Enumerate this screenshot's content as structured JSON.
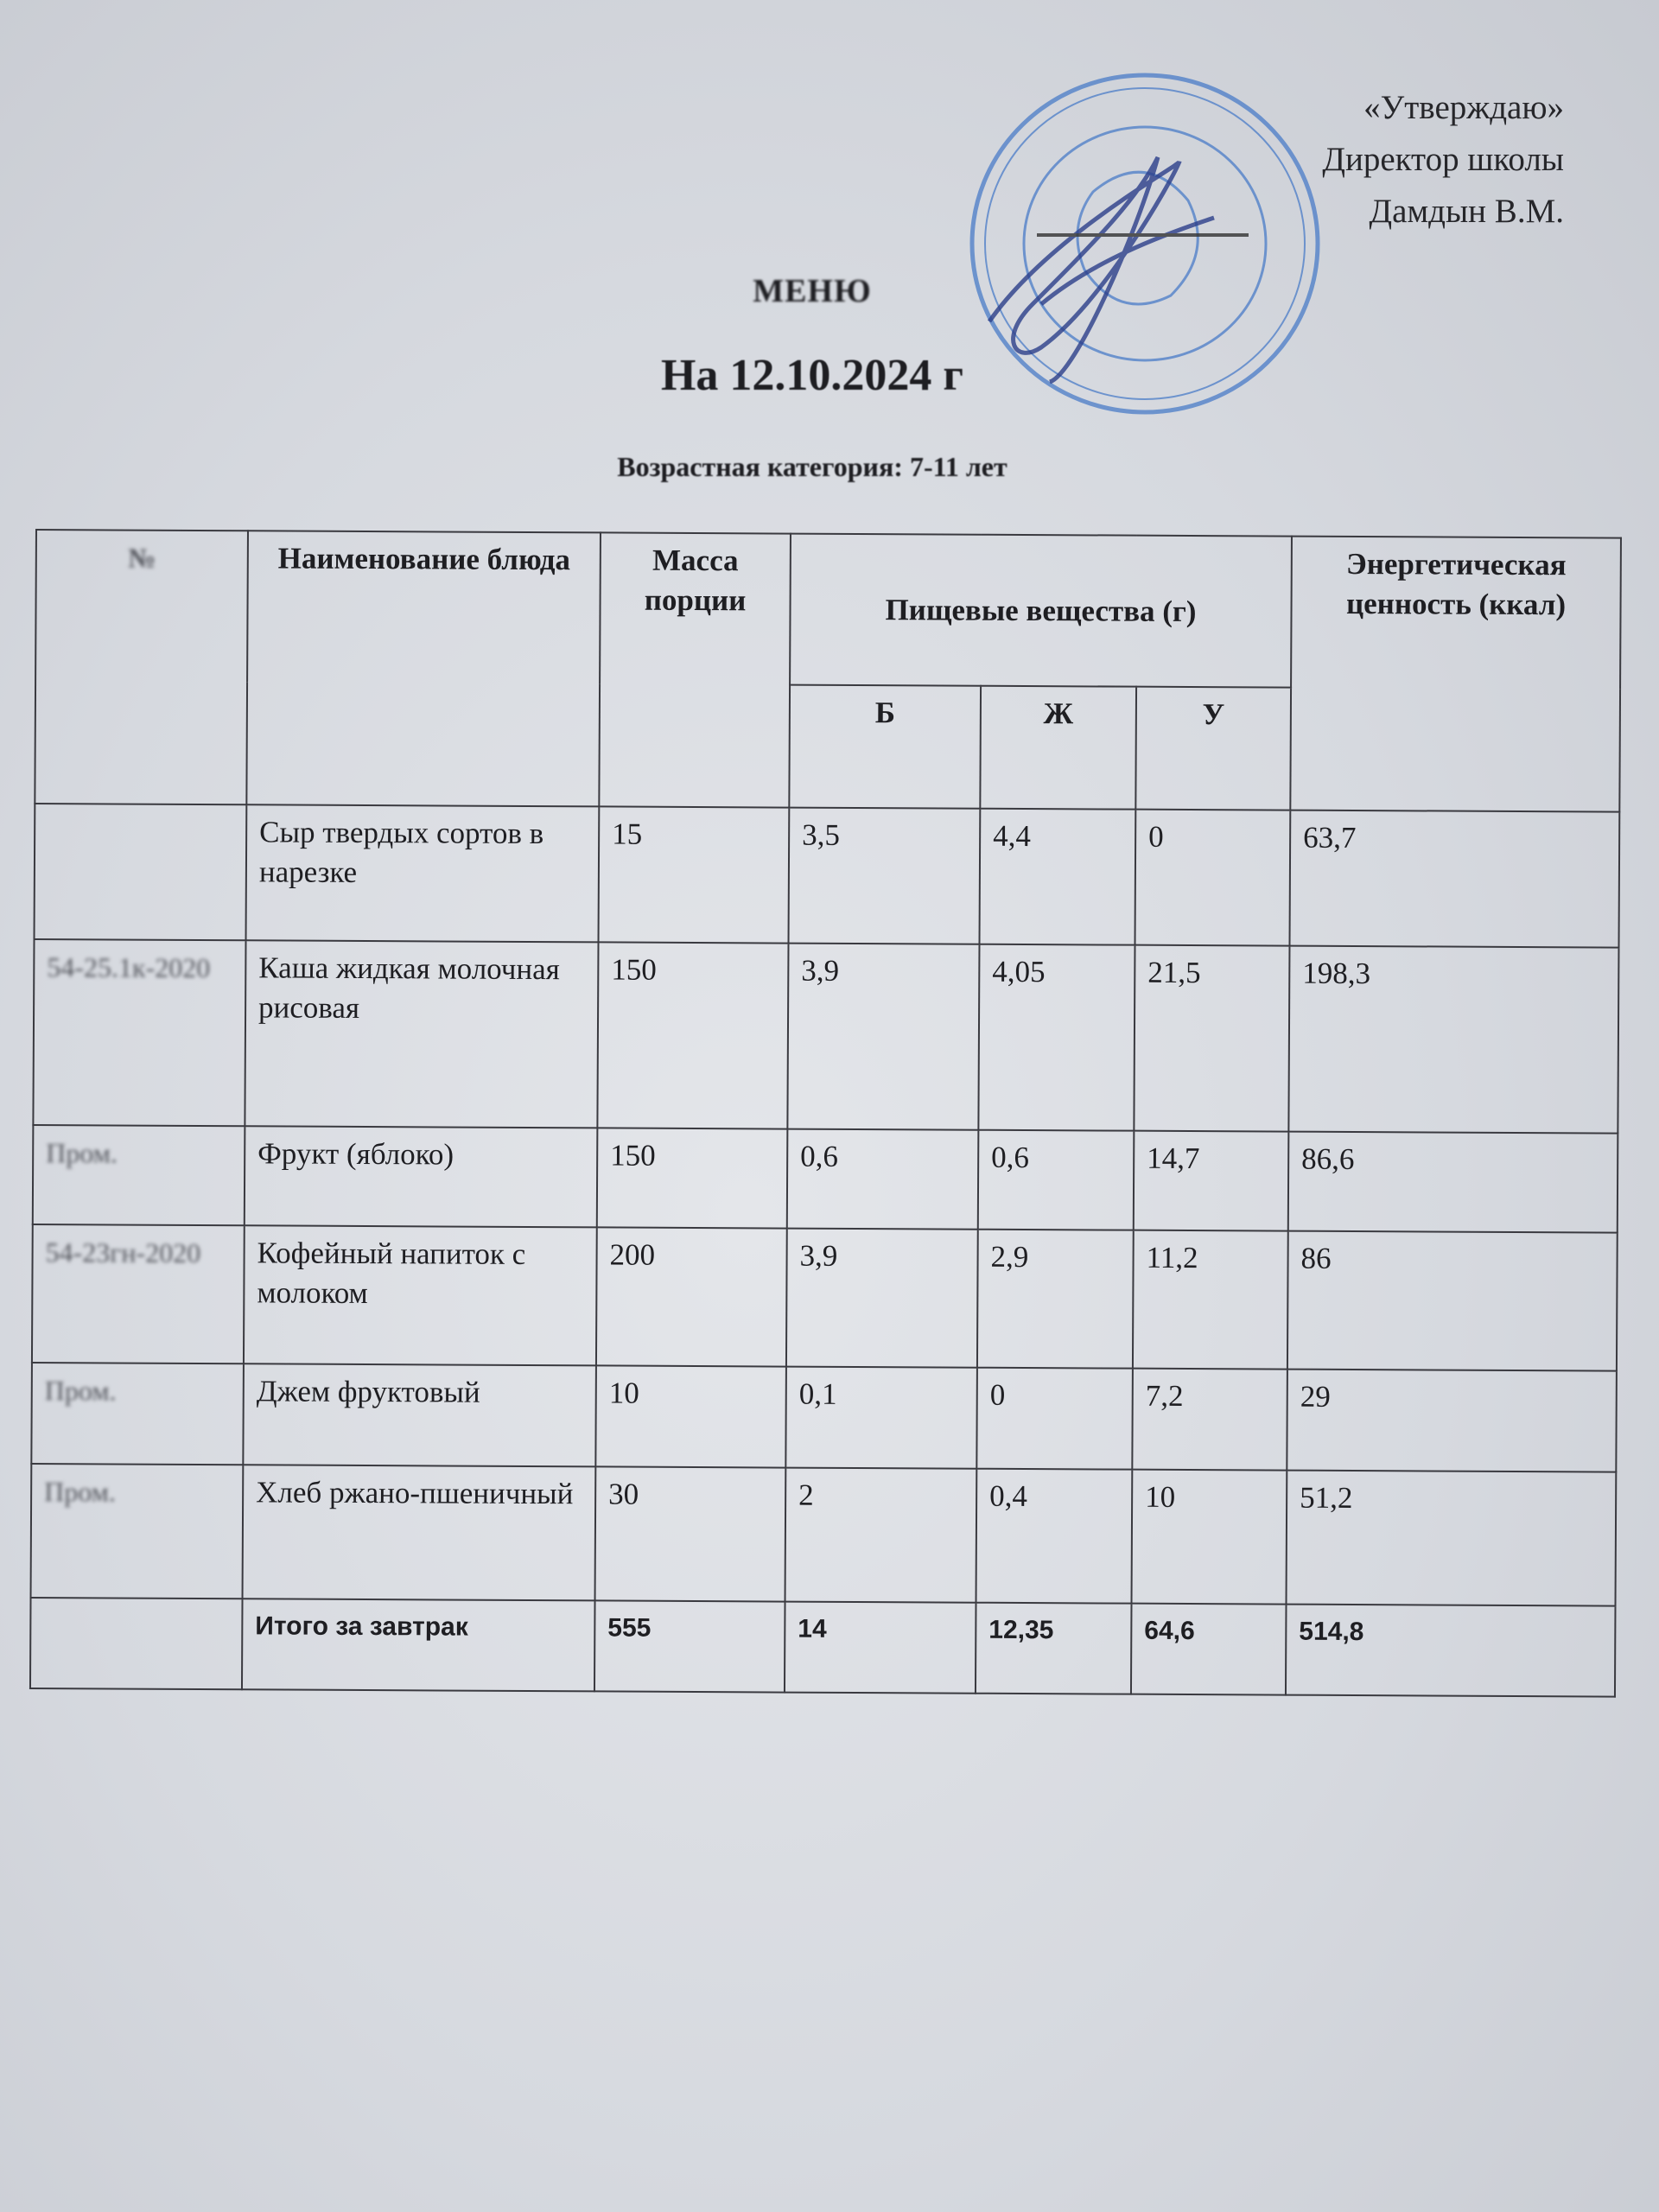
{
  "approval": {
    "line1": "«Утверждаю»",
    "line2": "Директор школы",
    "line3": "Дамдын В.М."
  },
  "stamp_color": "#4a7cc8",
  "signature_color": "#2c3f8a",
  "title": "МЕНЮ",
  "date": "На 12.10.2024 г",
  "age_category": "Возрастная категория: 7-11 лет",
  "table": {
    "headers": {
      "number": "№",
      "dish": "Наименование блюда",
      "mass": "Масса порции",
      "nutrients": "Пищевые вещества (г)",
      "protein": "Б",
      "fat": "Ж",
      "carbs": "У",
      "energy": "Энергетическая ценность (ккал)"
    },
    "rows": [
      {
        "code": "",
        "dish": "Сыр твердых сортов в нарезке",
        "mass": "15",
        "b": "3,5",
        "zh": "4,4",
        "u": "0",
        "kcal": "63,7"
      },
      {
        "code": "54-25.1к-2020",
        "dish": "Каша жидкая молочная рисовая",
        "mass": "150",
        "b": "3,9",
        "zh": "4,05",
        "u": "21,5",
        "kcal": "198,3"
      },
      {
        "code": "Пром.",
        "dish": "Фрукт (яблоко)",
        "mass": "150",
        "b": "0,6",
        "zh": "0,6",
        "u": "14,7",
        "kcal": "86,6"
      },
      {
        "code": "54-23гн-2020",
        "dish": "Кофейный напиток с молоком",
        "mass": "200",
        "b": "3,9",
        "zh": "2,9",
        "u": "11,2",
        "kcal": "86"
      },
      {
        "code": "Пром.",
        "dish": "Джем фруктовый",
        "mass": "10",
        "b": "0,1",
        "zh": "0",
        "u": "7,2",
        "kcal": "29"
      },
      {
        "code": "Пром.",
        "dish": "Хлеб ржано-пшеничный",
        "mass": "30",
        "b": "2",
        "zh": "0,4",
        "u": "10",
        "kcal": "51,2"
      }
    ],
    "total": {
      "label": "Итого за завтрак",
      "mass": "555",
      "b": "14",
      "zh": "12,35",
      "u": "64,6",
      "kcal": "514,8"
    }
  }
}
